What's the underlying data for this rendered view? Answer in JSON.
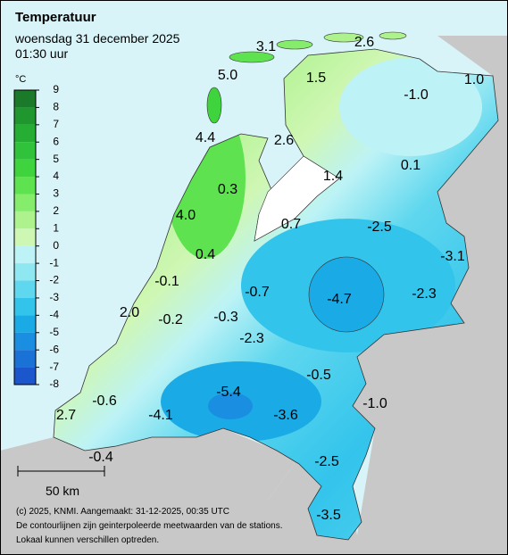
{
  "header": {
    "title": "Temperatuur",
    "date": "woensdag 31 december 2025",
    "time": "01:30 uur"
  },
  "legend": {
    "unit": "°C",
    "ticks": [
      9,
      8,
      7,
      6,
      5,
      4,
      3,
      2,
      1,
      0,
      -1,
      -2,
      -3,
      -4,
      -5,
      -6,
      -7,
      -8
    ],
    "colors": [
      "#1b7a2a",
      "#1f962e",
      "#26ad33",
      "#2fc23a",
      "#3fd43e",
      "#5ee24f",
      "#85ec6c",
      "#aef28e",
      "#cff7b4",
      "#bdf3f6",
      "#8fe7f2",
      "#5fd7ee",
      "#33c4ec",
      "#1aaae6",
      "#1a8ee0",
      "#1b72d6",
      "#1c56cc"
    ]
  },
  "stations": [
    "3.1",
    "2.6",
    "5.0",
    "1.5",
    "-1.0",
    "1.0",
    "4.4",
    "2.6",
    "1.4",
    "0.1",
    "0.3",
    "4.0",
    "0.7",
    "-2.5",
    "0.4",
    "-3.1",
    "-0.1",
    "-0.7",
    "-4.7",
    "-2.3",
    "2.0",
    "-0.2",
    "-0.3",
    "-2.3",
    "-0.5",
    "-5.4",
    "-1.0",
    "-0.6",
    "2.7",
    "-4.1",
    "-3.6",
    "-0.4",
    "-2.5",
    "-3.5"
  ],
  "scale": "50 km",
  "footer": [
    "(c) 2025, KNMI. Aangemaakt: 31-12-2025, 00:35 UTC",
    "De contourlijnen zijn geinterpoleerde meetwaarden van de stations.",
    "Lokaal kunnen verschillen optreden."
  ]
}
